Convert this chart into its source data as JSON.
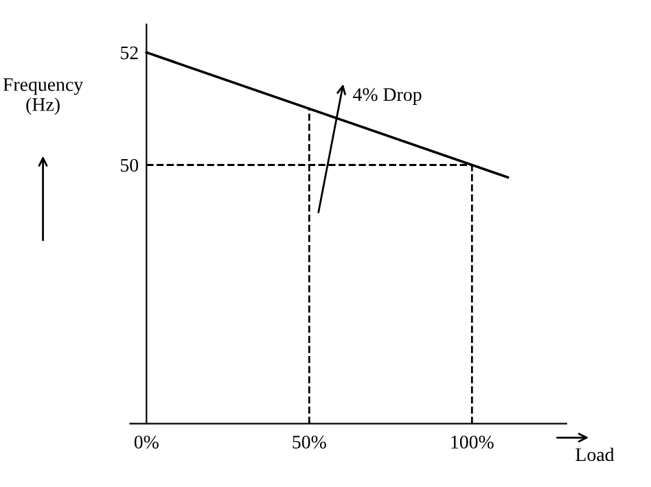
{
  "chart_data": {
    "type": "line",
    "xlabel": "Load",
    "ylabel": "Frequency\n(Hz)",
    "series": [
      {
        "color": "#000000",
        "x": [
          0,
          111
        ],
        "values": [
          52,
          49.78
        ],
        "line_style": "solid"
      },
      {
        "color": "#000000",
        "x": [
          0,
          100
        ],
        "values": [
          50,
          50
        ],
        "line_style": "dashed"
      },
      {
        "color": "#000000",
        "x": [
          50,
          50
        ],
        "values": [
          45.4,
          51
        ],
        "line_style": "dashed"
      },
      {
        "color": "#000000",
        "x": [
          100,
          100
        ],
        "values": [
          45.4,
          50
        ],
        "line_style": "dashed"
      }
    ],
    "annotations": [
      "4% Drop"
    ],
    "xlim": [
      -5,
      129
    ],
    "ylim": [
      45.4,
      52.5
    ],
    "xticks": [
      {
        "value": 0,
        "label": "0%"
      },
      {
        "value": 50,
        "label": "50%"
      },
      {
        "value": 100,
        "label": "100%"
      }
    ],
    "yticks": [
      52,
      50
    ],
    "marker": "none"
  }
}
